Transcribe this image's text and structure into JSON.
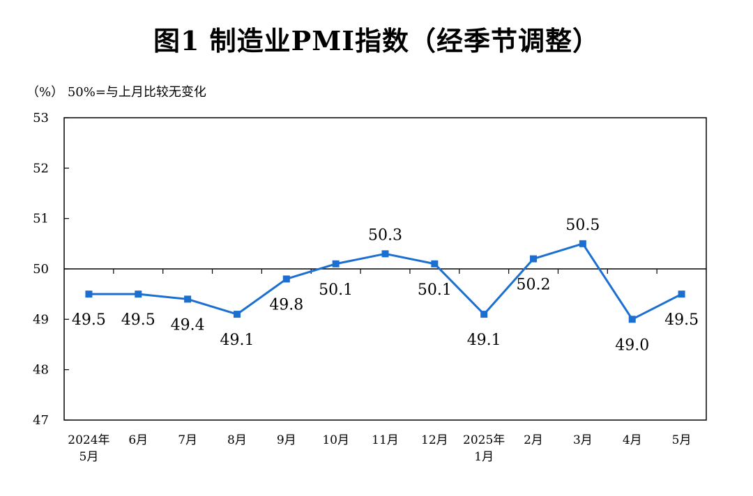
{
  "chart_data": {
    "type": "line",
    "title": "图1  制造业PMI指数（经季节调整）",
    "unit_note": "（%）  50%=与上月比较无变化",
    "categories": [
      [
        "2024年",
        "5月"
      ],
      [
        "6月"
      ],
      [
        "7月"
      ],
      [
        "8月"
      ],
      [
        "9月"
      ],
      [
        "10月"
      ],
      [
        "11月"
      ],
      [
        "12月"
      ],
      [
        "2025年",
        "1月"
      ],
      [
        "2月"
      ],
      [
        "3月"
      ],
      [
        "4月"
      ],
      [
        "5月"
      ]
    ],
    "series": [
      {
        "name": "",
        "values": [
          49.5,
          49.5,
          49.4,
          49.1,
          49.8,
          50.1,
          50.3,
          50.1,
          49.1,
          50.2,
          50.5,
          49.0,
          49.5
        ]
      }
    ],
    "data_labels": [
      "49.5",
      "49.5",
      "49.4",
      "49.1",
      "49.8",
      "50.1",
      "50.3",
      "50.1",
      "49.1",
      "50.2",
      "50.5",
      "49.0",
      "49.5"
    ],
    "ylim": [
      47,
      53
    ],
    "yticks": [
      47,
      48,
      49,
      50,
      51,
      52,
      53
    ],
    "reference_line": 50,
    "xlabel": "",
    "ylabel": "",
    "grid": false,
    "colors": {
      "series": "#1b6fd1",
      "axis": "#000000"
    }
  }
}
